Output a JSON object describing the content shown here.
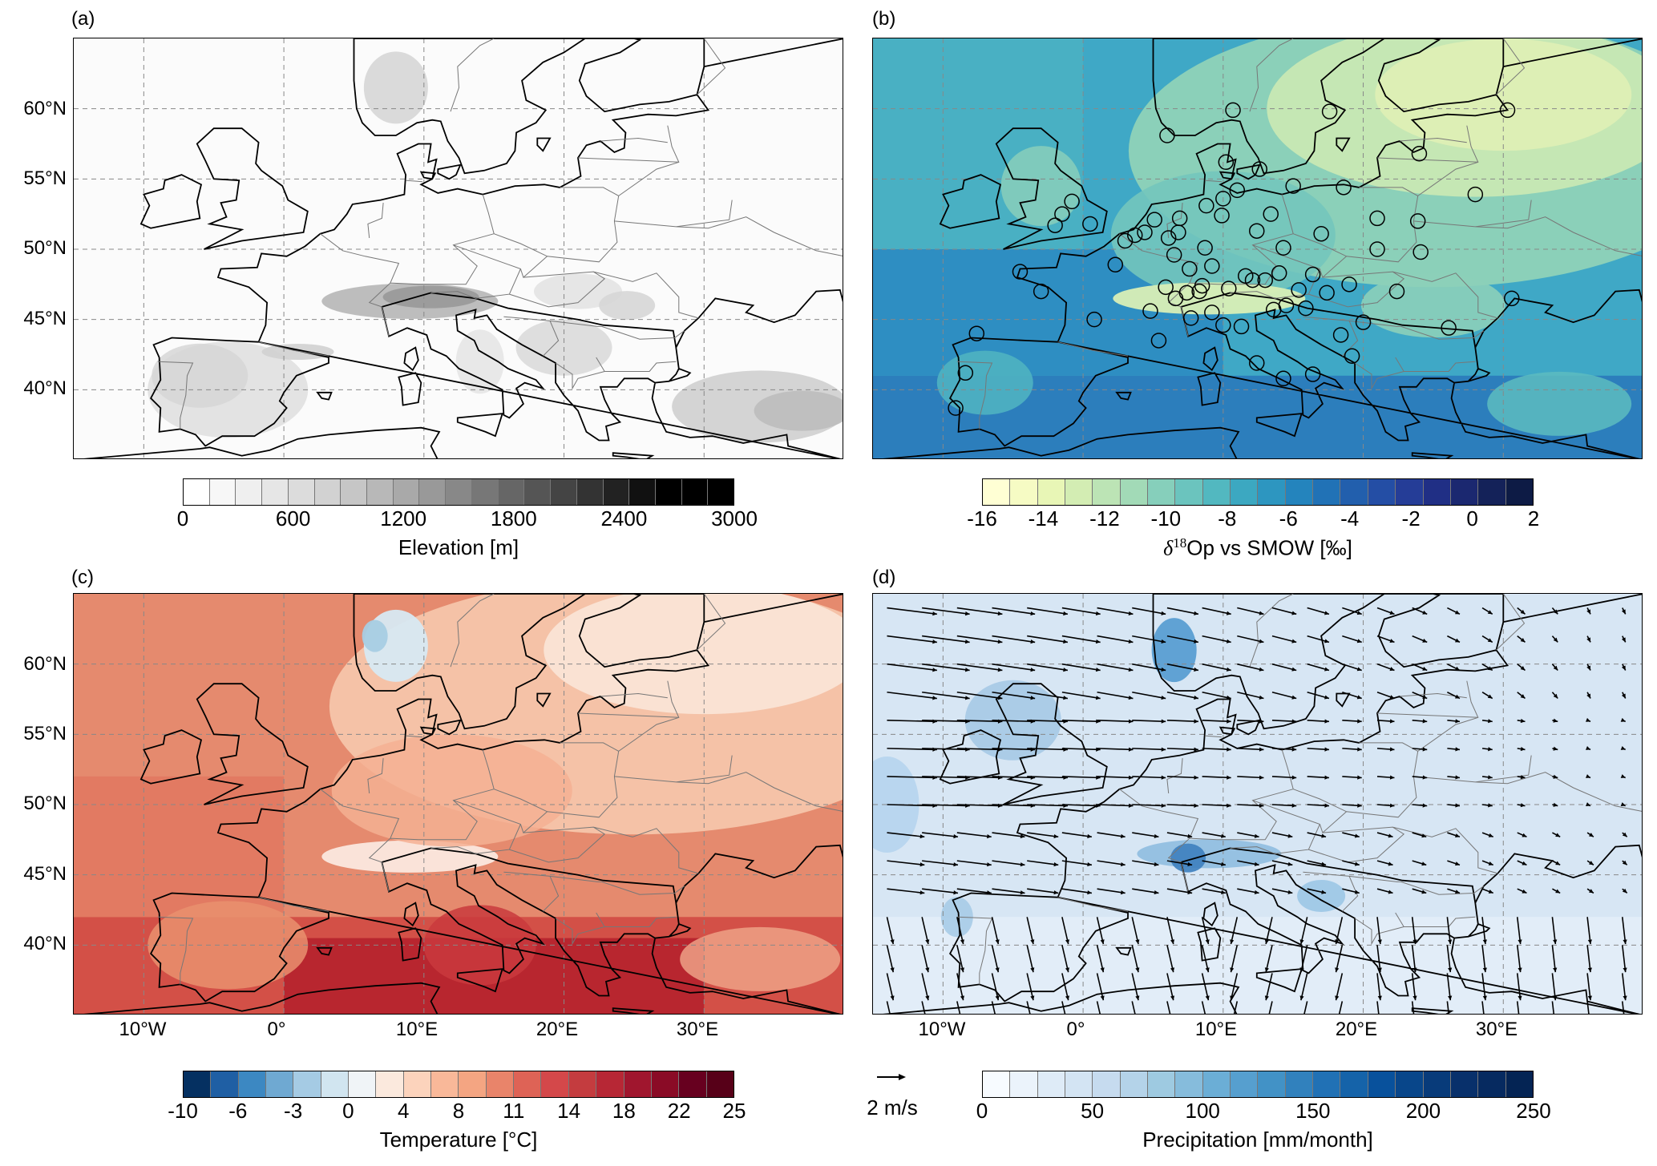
{
  "panels": {
    "a": {
      "label": "(a)"
    },
    "b": {
      "label": "(b)"
    },
    "c": {
      "label": "(c)"
    },
    "d": {
      "label": "(d)"
    }
  },
  "lat_labels": [
    "60°N",
    "55°N",
    "50°N",
    "45°N",
    "40°N"
  ],
  "lon_labels": [
    "10°W",
    "0°",
    "10°E",
    "20°E",
    "30°E"
  ],
  "colorbars": {
    "elevation": {
      "title": "Elevation [m]",
      "ticks": [
        "0",
        "600",
        "1200",
        "1800",
        "2400",
        "3000"
      ],
      "colors": [
        "#ffffff",
        "#f7f7f7",
        "#efefef",
        "#e6e6e6",
        "#dcdcdc",
        "#d2d2d2",
        "#c6c6c6",
        "#b8b8b8",
        "#a9a9a9",
        "#999999",
        "#888888",
        "#777777",
        "#666666",
        "#555555",
        "#444444",
        "#333333",
        "#222222",
        "#111111",
        "#000000",
        "#000000",
        "#000000"
      ]
    },
    "d18o": {
      "title_prefix": "δ",
      "title_sup": "18",
      "title_suffix": "Op vs SMOW [‰]",
      "ticks": [
        "-16",
        "-14",
        "-12",
        "-10",
        "-8",
        "-6",
        "-4",
        "-2",
        "0",
        "2"
      ],
      "colors": [
        "#ffffd4",
        "#f6fbc4",
        "#e8f6b6",
        "#d3edb3",
        "#bce4b5",
        "#a2dab7",
        "#86cfbb",
        "#6bc4be",
        "#52b8c0",
        "#3ca8c1",
        "#2d96c0",
        "#2484bd",
        "#2172b6",
        "#225fad",
        "#244ea5",
        "#253d97",
        "#202f85",
        "#1b2870",
        "#142259",
        "#0d1b45"
      ]
    },
    "temperature": {
      "title": "Temperature [°C]",
      "ticks": [
        "-10",
        "-6",
        "-3",
        "0",
        "4",
        "8",
        "11",
        "14",
        "18",
        "22",
        "25"
      ],
      "colors": [
        "#053061",
        "#1f5fa4",
        "#3c88c2",
        "#6fa9d2",
        "#a5cbe4",
        "#d1e5f0",
        "#f0f4f7",
        "#fbe9dd",
        "#fcd3bc",
        "#f9b899",
        "#f4a582",
        "#e9846a",
        "#de6356",
        "#d4484a",
        "#c43c3f",
        "#b72735",
        "#a0162e",
        "#8a0b26",
        "#67001f",
        "#570018"
      ]
    },
    "precip": {
      "title": "Precipitation [mm/month]",
      "ticks": [
        "0",
        "50",
        "100",
        "150",
        "200",
        "250"
      ],
      "colors": [
        "#f7fbff",
        "#ebf3fb",
        "#deebf7",
        "#d3e4f3",
        "#c6dbef",
        "#b4d3e9",
        "#9ecae1",
        "#86bcdc",
        "#6baed6",
        "#569fcf",
        "#4292c6",
        "#3181bd",
        "#2171b5",
        "#1563a9",
        "#08519c",
        "#08468a",
        "#083b7a",
        "#08306b",
        "#062a60",
        "#042454"
      ]
    }
  },
  "arrow_key": {
    "label": "2 m/s"
  },
  "map": {
    "lon_range": [
      -15,
      40
    ],
    "lat_range": [
      35,
      65
    ]
  },
  "stations": [
    [
      -9.1,
      38.7
    ],
    [
      -8.4,
      41.2
    ],
    [
      -4.5,
      48.4
    ],
    [
      -2.0,
      51.7
    ],
    [
      0.5,
      51.8
    ],
    [
      -1.5,
      52.5
    ],
    [
      -0.8,
      53.4
    ],
    [
      -7.6,
      44.0
    ],
    [
      -3.0,
      47.0
    ],
    [
      0.8,
      45.0
    ],
    [
      4.8,
      45.6
    ],
    [
      5.4,
      43.5
    ],
    [
      7.7,
      45.1
    ],
    [
      8.5,
      47.4
    ],
    [
      9.2,
      45.5
    ],
    [
      10.0,
      44.6
    ],
    [
      11.3,
      44.5
    ],
    [
      12.4,
      41.9
    ],
    [
      14.3,
      40.8
    ],
    [
      16.4,
      41.1
    ],
    [
      13.6,
      45.7
    ],
    [
      14.5,
      46.0
    ],
    [
      15.9,
      45.8
    ],
    [
      17.4,
      46.9
    ],
    [
      16.4,
      48.2
    ],
    [
      19.0,
      47.5
    ],
    [
      20.0,
      44.8
    ],
    [
      21.0,
      50.0
    ],
    [
      21.0,
      52.2
    ],
    [
      23.9,
      52.0
    ],
    [
      24.0,
      56.8
    ],
    [
      30.3,
      59.9
    ],
    [
      28.0,
      53.9
    ],
    [
      30.6,
      46.5
    ],
    [
      24.1,
      49.8
    ],
    [
      17.0,
      51.1
    ],
    [
      14.3,
      50.1
    ],
    [
      12.4,
      51.3
    ],
    [
      9.9,
      52.4
    ],
    [
      10.0,
      53.6
    ],
    [
      8.8,
      53.1
    ],
    [
      6.9,
      52.2
    ],
    [
      5.1,
      52.1
    ],
    [
      4.4,
      51.2
    ],
    [
      3.7,
      51.0
    ],
    [
      6.1,
      50.8
    ],
    [
      6.8,
      51.2
    ],
    [
      8.7,
      50.1
    ],
    [
      11.6,
      48.1
    ],
    [
      9.2,
      48.8
    ],
    [
      7.6,
      48.6
    ],
    [
      5.9,
      47.3
    ],
    [
      2.3,
      48.9
    ],
    [
      3.0,
      50.6
    ],
    [
      6.5,
      49.6
    ],
    [
      13.4,
      52.5
    ],
    [
      12.6,
      55.7
    ],
    [
      10.2,
      56.2
    ],
    [
      11.0,
      54.2
    ],
    [
      15.0,
      54.5
    ],
    [
      18.6,
      54.4
    ],
    [
      6.0,
      58.1
    ],
    [
      10.7,
      59.9
    ],
    [
      17.6,
      59.8
    ],
    [
      14.0,
      48.3
    ],
    [
      12.1,
      47.8
    ],
    [
      10.4,
      47.2
    ],
    [
      8.3,
      47.0
    ],
    [
      7.4,
      46.9
    ],
    [
      6.6,
      46.5
    ],
    [
      15.4,
      47.1
    ],
    [
      13.0,
      47.8
    ],
    [
      18.4,
      43.9
    ],
    [
      19.2,
      42.4
    ],
    [
      22.4,
      47.0
    ],
    [
      26.1,
      44.4
    ]
  ]
}
